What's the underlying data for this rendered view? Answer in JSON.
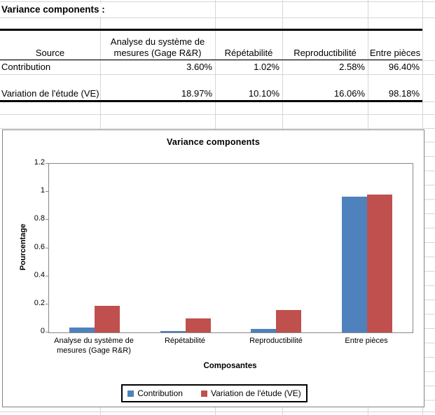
{
  "sheet_title": "Variance components :",
  "table": {
    "columns": [
      "Source",
      "Analyse du système de mesures (Gage R&R)",
      "Répétabilité",
      "Reproductibilité",
      "Entre pièces"
    ],
    "rows": [
      {
        "label": "Contribution",
        "values": [
          "3.60%",
          "1.02%",
          "2.58%",
          "96.40%"
        ]
      },
      {
        "label": "Variation de l'étude (VE)",
        "values": [
          "18.97%",
          "10.10%",
          "16.06%",
          "98.18%"
        ]
      }
    ]
  },
  "chart_data": {
    "type": "bar",
    "title": "Variance components",
    "xlabel": "Composantes",
    "ylabel": "Pourcentage",
    "categories": [
      "Analyse du système de mesures (Gage R&R)",
      "Répétabilité",
      "Reproductibilité",
      "Entre pièces"
    ],
    "series": [
      {
        "name": "Contribution",
        "color": "#4F81BD",
        "values": [
          0.036,
          0.0102,
          0.0258,
          0.964
        ]
      },
      {
        "name": "Variation de l'étude (VE)",
        "color": "#C0504D",
        "values": [
          0.1897,
          0.101,
          0.1606,
          0.9818
        ]
      }
    ],
    "ylim": [
      0,
      1.2
    ],
    "yticks": [
      "1.2",
      "1",
      "0.8",
      "0.6",
      "0.4",
      "0.2",
      "0"
    ],
    "grid": false,
    "legend_position": "bottom"
  }
}
